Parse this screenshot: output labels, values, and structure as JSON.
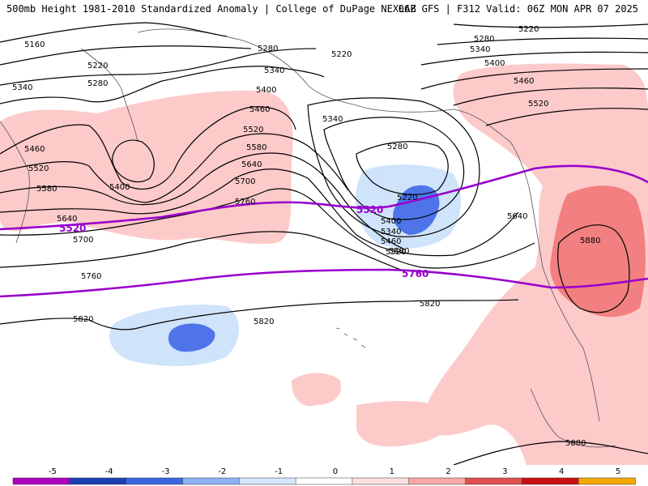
{
  "header": {
    "title_left": "500mb Height 1981-2010 Standardized Anomaly | College of DuPage NEXLAB",
    "title_right": "06Z GFS | F312 Valid: 06Z MON APR 07 2025"
  },
  "map": {
    "contour_labels": [
      {
        "name": "label-5160",
        "text": "5160"
      },
      {
        "name": "label-5220-nw",
        "text": "5220"
      },
      {
        "name": "label-5280-nw",
        "text": "5280"
      },
      {
        "name": "label-5340-w",
        "text": "5340"
      },
      {
        "name": "label-5280-n",
        "text": "5280"
      },
      {
        "name": "label-5220-n",
        "text": "5220"
      },
      {
        "name": "label-5340-n",
        "text": "5340"
      },
      {
        "name": "label-5400-n",
        "text": "5400"
      },
      {
        "name": "label-5460-n",
        "text": "5460"
      },
      {
        "name": "label-5520-n",
        "text": "5520"
      },
      {
        "name": "label-5580-n",
        "text": "5580"
      },
      {
        "name": "label-5640-n",
        "text": "5640"
      },
      {
        "name": "label-5700-n",
        "text": "5700"
      },
      {
        "name": "label-5760-n",
        "text": "5760"
      },
      {
        "name": "label-5400-trough",
        "text": "5400"
      },
      {
        "name": "label-5460-w",
        "text": "5460"
      },
      {
        "name": "label-5520-w",
        "text": "5520"
      },
      {
        "name": "label-5580-w",
        "text": "5580"
      },
      {
        "name": "label-5640-w",
        "text": "5640"
      },
      {
        "name": "label-5700-w",
        "text": "5700"
      },
      {
        "name": "label-5760-w",
        "text": "5760"
      },
      {
        "name": "label-5340-low",
        "text": "5340"
      },
      {
        "name": "label-5280-low",
        "text": "5280"
      },
      {
        "name": "label-5220-low",
        "text": "5220"
      },
      {
        "name": "label-5340-lowb",
        "text": "5340"
      },
      {
        "name": "label-5400-low",
        "text": "5400"
      },
      {
        "name": "label-5460-low",
        "text": "5460"
      },
      {
        "name": "label-5520-low",
        "text": "5520"
      },
      {
        "name": "label-5580-low",
        "text": "5580"
      },
      {
        "name": "label-5220-ne",
        "text": "5220"
      },
      {
        "name": "label-5280-ne",
        "text": "5280"
      },
      {
        "name": "label-5340-ne",
        "text": "5340"
      },
      {
        "name": "label-5400-ne",
        "text": "5400"
      },
      {
        "name": "label-5460-ne",
        "text": "5460"
      },
      {
        "name": "label-5520-ne",
        "text": "5520"
      },
      {
        "name": "label-5640-e",
        "text": "5640"
      },
      {
        "name": "label-5880-ridge",
        "text": "5880"
      },
      {
        "name": "label-5820-c",
        "text": "5820"
      },
      {
        "name": "label-5820-w",
        "text": "5820"
      },
      {
        "name": "label-5820-sw",
        "text": "5820"
      },
      {
        "name": "label-5880-mexico",
        "text": "5880"
      }
    ],
    "highlight_labels": [
      {
        "name": "purple-label-5520-w",
        "text": "5520"
      },
      {
        "name": "purple-label-5520-c",
        "text": "5520"
      },
      {
        "name": "purple-label-5760",
        "text": "5760"
      }
    ],
    "colors": {
      "light_red": "#fdcaca",
      "mid_red": "#f28080",
      "light_blue": "#cfe3fb",
      "mid_blue": "#4f74ea",
      "purple": "#9900cc",
      "contour": "#000000"
    }
  },
  "colorbar": {
    "ticks": [
      "-5",
      "-4",
      "-3",
      "-2",
      "-1",
      "0",
      "1",
      "2",
      "3",
      "4",
      "5"
    ],
    "colors": [
      "#b000c0",
      "#1d3fb6",
      "#3b66e0",
      "#8cb2f6",
      "#d6e6fc",
      "#ffffff",
      "#fde0e0",
      "#f7a8a8",
      "#e05050",
      "#c81010",
      "#f5a800"
    ]
  }
}
